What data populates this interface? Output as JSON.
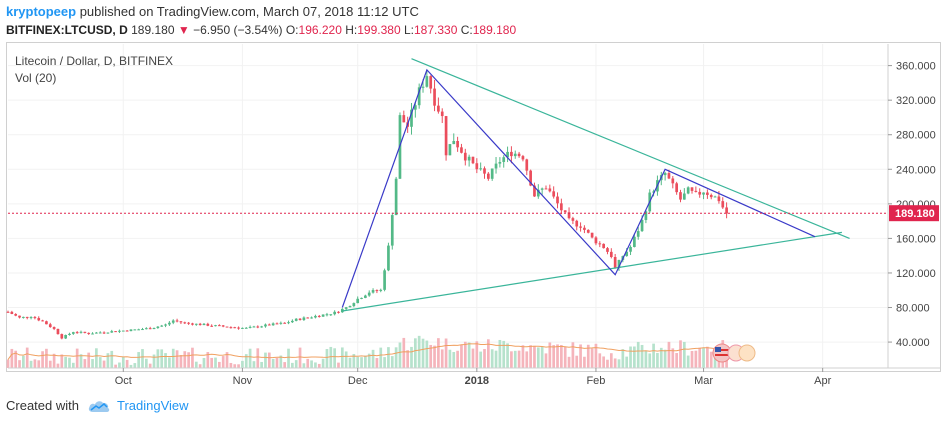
{
  "header": {
    "author": "kryptopeep",
    "published": "published on TradingView.com, March 07, 2018 11:12 UTC",
    "symbol": "BITFINEX:LTCUSD, D",
    "last": "189.180",
    "change": "−6.950 (−3.54%)",
    "o_label": "O:",
    "o": "196.220",
    "h_label": "H:",
    "h": "199.380",
    "l_label": "L:",
    "l": "187.330",
    "c_label": "C:",
    "c": "189.180",
    "down_arrow_icon": "triangle-down-icon"
  },
  "legend": {
    "title": "Litecoin / Dollar, D, BITFINEX",
    "volume": "Vol (20)"
  },
  "footer": {
    "created_with": "Created with",
    "brand": "TradingView",
    "logo_icon": "cloud-logo-icon"
  },
  "colors": {
    "up": "#53b987",
    "down": "#eb4d5c",
    "up_vol": "#b6e2cc",
    "down_vol": "#f5b4bb",
    "triangle": "#3ab59a",
    "channel": "#3a3ac8",
    "price_line": "#e0254e",
    "vol_ma": "#f0a060"
  },
  "chart_data": {
    "type": "candlestick",
    "title": "Litecoin / Dollar, D, BITFINEX",
    "y_axis": {
      "ticks": [
        "40.000",
        "80.000",
        "120.000",
        "160.000",
        "200.000",
        "240.000",
        "280.000",
        "320.000",
        "360.000"
      ],
      "ylim": [
        10,
        385
      ],
      "position": "right"
    },
    "x_axis": {
      "ticks": [
        "Oct",
        "Nov",
        "Dec",
        "2018",
        "Feb",
        "Mar",
        "Apr"
      ],
      "xlim": [
        "2017-09-01",
        "2018-04-18"
      ]
    },
    "current_price": {
      "value": 189.18,
      "label": "189.180"
    },
    "price_path": [
      [
        "2017-09-01",
        75
      ],
      [
        "2017-09-04",
        68
      ],
      [
        "2017-09-07",
        70
      ],
      [
        "2017-09-10",
        64
      ],
      [
        "2017-09-13",
        55
      ],
      [
        "2017-09-15",
        45
      ],
      [
        "2017-09-18",
        52
      ],
      [
        "2017-09-22",
        50
      ],
      [
        "2017-09-27",
        52
      ],
      [
        "2017-10-03",
        54
      ],
      [
        "2017-10-08",
        56
      ],
      [
        "2017-10-12",
        60
      ],
      [
        "2017-10-14",
        65
      ],
      [
        "2017-10-17",
        62
      ],
      [
        "2017-10-22",
        60
      ],
      [
        "2017-10-27",
        58
      ],
      [
        "2017-11-02",
        56
      ],
      [
        "2017-11-08",
        60
      ],
      [
        "2017-11-12",
        62
      ],
      [
        "2017-11-15",
        66
      ],
      [
        "2017-11-20",
        70
      ],
      [
        "2017-11-25",
        74
      ],
      [
        "2017-11-28",
        80
      ],
      [
        "2017-12-01",
        90
      ],
      [
        "2017-12-04",
        98
      ],
      [
        "2017-12-07",
        100
      ],
      [
        "2017-12-09",
        150
      ],
      [
        "2017-12-11",
        230
      ],
      [
        "2017-12-12",
        300
      ],
      [
        "2017-12-14",
        290
      ],
      [
        "2017-12-17",
        330
      ],
      [
        "2017-12-19",
        350
      ],
      [
        "2017-12-21",
        320
      ],
      [
        "2017-12-23",
        300
      ],
      [
        "2017-12-24",
        260
      ],
      [
        "2017-12-26",
        275
      ],
      [
        "2017-12-29",
        255
      ],
      [
        "2018-01-01",
        240
      ],
      [
        "2018-01-04",
        230
      ],
      [
        "2018-01-07",
        250
      ],
      [
        "2018-01-10",
        260
      ],
      [
        "2018-01-13",
        255
      ],
      [
        "2018-01-16",
        210
      ],
      [
        "2018-01-19",
        220
      ],
      [
        "2018-01-22",
        200
      ],
      [
        "2018-01-25",
        180
      ],
      [
        "2018-01-28",
        175
      ],
      [
        "2018-01-31",
        160
      ],
      [
        "2018-02-03",
        150
      ],
      [
        "2018-02-05",
        140
      ],
      [
        "2018-02-06",
        125
      ],
      [
        "2018-02-08",
        140
      ],
      [
        "2018-02-10",
        150
      ],
      [
        "2018-02-13",
        180
      ],
      [
        "2018-02-15",
        210
      ],
      [
        "2018-02-17",
        225
      ],
      [
        "2018-02-19",
        235
      ],
      [
        "2018-02-21",
        220
      ],
      [
        "2018-02-23",
        205
      ],
      [
        "2018-02-25",
        215
      ],
      [
        "2018-02-27",
        210
      ],
      [
        "2018-03-01",
        215
      ],
      [
        "2018-03-03",
        210
      ],
      [
        "2018-03-05",
        205
      ],
      [
        "2018-03-06",
        196
      ],
      [
        "2018-03-07",
        189
      ]
    ],
    "annotations": [
      {
        "type": "trendline",
        "name": "triangle-upper",
        "from": [
          "2017-12-15",
          368
        ],
        "to": [
          "2018-04-08",
          160
        ]
      },
      {
        "type": "trendline",
        "name": "triangle-lower",
        "from": [
          "2017-11-27",
          76
        ],
        "to": [
          "2018-04-06",
          167
        ]
      },
      {
        "type": "trendline",
        "name": "zigzag",
        "points": [
          [
            "2017-11-27",
            80
          ],
          [
            "2017-12-19",
            355
          ],
          [
            "2018-02-06",
            118
          ],
          [
            "2018-02-19",
            240
          ],
          [
            "2018-03-30",
            162
          ]
        ]
      }
    ]
  }
}
